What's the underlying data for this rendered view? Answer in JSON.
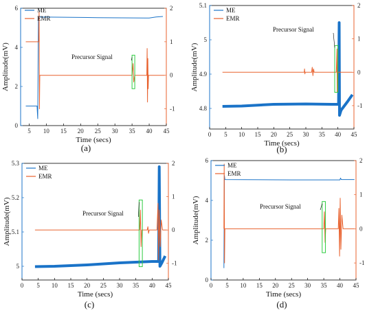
{
  "colors": {
    "me": "#1a73c8",
    "emr": "#e8602c",
    "annotation_box": "#2ecc40",
    "axis_left": "#1a73c8",
    "axis_right": "#e8602c"
  },
  "chart_data": [
    {
      "type": "line",
      "panel_label": "(a)",
      "xlabel": "Time (secs)",
      "ylabel": "Amplitude(mV)",
      "xticks": [
        5,
        10,
        15,
        20,
        25,
        30,
        35,
        40,
        45
      ],
      "xlim": [
        2.5,
        45
      ],
      "yticks": [
        "0",
        "2",
        "4",
        "6"
      ],
      "ylim": [
        0,
        6
      ],
      "y2ticks": [
        "-1",
        "0",
        "1",
        "2"
      ],
      "y2lim": [
        -1.5,
        2
      ],
      "legend": [
        "ME",
        "EMR"
      ],
      "legend_position": "top-left",
      "annotation": {
        "text": "Precursor Signal",
        "box_x": [
          35,
          35.8
        ],
        "box_y2": [
          -0.4,
          0.6
        ]
      },
      "series": [
        {
          "name": "ME",
          "axis": "left",
          "points": [
            [
              4,
              1.0
            ],
            [
              7.3,
              1.0
            ],
            [
              7.5,
              0.35
            ],
            [
              7.7,
              5.55
            ],
            [
              25,
              5.52
            ],
            [
              39,
              5.5
            ],
            [
              40,
              5.5
            ],
            [
              42,
              5.55
            ],
            [
              44,
              5.58
            ]
          ]
        },
        {
          "name": "EMR",
          "axis": "right",
          "points": [
            [
              4,
              1
            ],
            [
              7.8,
              1
            ],
            [
              7.9,
              1.88
            ],
            [
              8.0,
              -1.0
            ],
            [
              8.1,
              0
            ],
            [
              35,
              0
            ],
            [
              35.3,
              0.35
            ],
            [
              35.5,
              -0.2
            ],
            [
              35.8,
              0
            ],
            [
              39.3,
              0
            ],
            [
              39.4,
              0.8
            ],
            [
              39.5,
              -0.8
            ],
            [
              39.6,
              0.5
            ],
            [
              39.7,
              -0.4
            ],
            [
              39.8,
              0
            ],
            [
              44.5,
              0
            ]
          ]
        }
      ]
    },
    {
      "type": "line",
      "panel_label": "(b)",
      "xlabel": "Time (secs)",
      "ylabel": "Amplitude(mV)",
      "xticks": [
        0,
        5,
        10,
        15,
        20,
        25,
        30,
        35,
        40,
        45
      ],
      "xlim": [
        0,
        45
      ],
      "yticks": [
        "4.8",
        "4.9",
        "5",
        "5.1"
      ],
      "ylim": [
        4.74,
        5.1
      ],
      "y2ticks": [
        "-1",
        "0",
        "1",
        "2"
      ],
      "y2lim": [
        -1.7,
        2
      ],
      "legend": [
        "ME",
        "EMR"
      ],
      "legend_position": "top-left",
      "annotation": {
        "text": "Precursor Signal",
        "box_x": [
          39,
          40
        ],
        "box_y2": [
          -0.6,
          0.8
        ]
      },
      "series": [
        {
          "name": "ME",
          "axis": "left",
          "points": [
            [
              4,
              4.806
            ],
            [
              10,
              4.807
            ],
            [
              20,
              4.812
            ],
            [
              30,
              4.813
            ],
            [
              38,
              4.812
            ],
            [
              40.2,
              4.812
            ],
            [
              40.4,
              5.05
            ],
            [
              40.5,
              4.78
            ],
            [
              41,
              4.795
            ],
            [
              43,
              4.82
            ],
            [
              44.5,
              4.84
            ]
          ]
        },
        {
          "name": "EMR",
          "axis": "right",
          "points": [
            [
              4,
              0
            ],
            [
              29.5,
              0
            ],
            [
              29.6,
              0.1
            ],
            [
              29.7,
              -0.05
            ],
            [
              29.8,
              0
            ],
            [
              31.8,
              0
            ],
            [
              32,
              0.15
            ],
            [
              32.2,
              -0.1
            ],
            [
              32.4,
              0.1
            ],
            [
              32.6,
              0
            ],
            [
              39.5,
              0
            ],
            [
              39.7,
              0.7
            ],
            [
              39.8,
              -0.6
            ],
            [
              40,
              0
            ],
            [
              44.5,
              0
            ]
          ]
        }
      ]
    },
    {
      "type": "line",
      "panel_label": "(c)",
      "xlabel": "Time (secs)",
      "ylabel": "Amplitude(mV)",
      "xticks": [
        0,
        5,
        10,
        15,
        20,
        25,
        30,
        35,
        40,
        45
      ],
      "xlim": [
        0,
        45
      ],
      "yticks": [
        "5",
        "5.1",
        "5.2",
        "5.3"
      ],
      "ylim": [
        4.96,
        5.3
      ],
      "y2ticks": [
        "-1",
        "0",
        "1",
        "2"
      ],
      "y2lim": [
        -1.5,
        2
      ],
      "legend": [
        "ME",
        "EMR"
      ],
      "legend_position": "top-left",
      "annotation": {
        "text": "Precursor Signal",
        "box_x": [
          36,
          37
        ],
        "box_y2": [
          -1.1,
          0.9
        ]
      },
      "series": [
        {
          "name": "ME",
          "axis": "left",
          "points": [
            [
              4,
              4.999
            ],
            [
              10,
              5.0
            ],
            [
              20,
              5.004
            ],
            [
              30,
              5.01
            ],
            [
              40,
              5.014
            ],
            [
              42,
              5.014
            ],
            [
              42.2,
              5.29
            ],
            [
              42.4,
              5.0
            ],
            [
              43,
              5.01
            ],
            [
              44,
              5.03
            ]
          ]
        },
        {
          "name": "EMR",
          "axis": "right",
          "points": [
            [
              4,
              0
            ],
            [
              36.2,
              0
            ],
            [
              36.4,
              0.6
            ],
            [
              36.6,
              -0.5
            ],
            [
              36.8,
              0
            ],
            [
              38.5,
              0
            ],
            [
              38.7,
              0.1
            ],
            [
              38.9,
              -0.1
            ],
            [
              39.1,
              0
            ],
            [
              41.5,
              0
            ],
            [
              41.8,
              0.8
            ],
            [
              42.0,
              -0.9
            ],
            [
              42.2,
              0.6
            ],
            [
              42.5,
              -0.5
            ],
            [
              42.8,
              0.3
            ],
            [
              43.2,
              0
            ],
            [
              44.5,
              0
            ]
          ]
        }
      ]
    },
    {
      "type": "line",
      "panel_label": "(d)",
      "xlabel": "Time (secs)",
      "ylabel": "Amplitude(mV)",
      "xticks": [
        0,
        5,
        10,
        15,
        20,
        25,
        30,
        35,
        40,
        45
      ],
      "xlim": [
        0,
        45
      ],
      "yticks": [
        "0",
        "2",
        "4",
        "6"
      ],
      "ylim": [
        0,
        6
      ],
      "y2ticks": [
        "-1",
        "0",
        "1",
        "2"
      ],
      "y2lim": [
        -1.5,
        2
      ],
      "legend": [
        "ME",
        "EMR"
      ],
      "legend_position": "top-left",
      "annotation": {
        "text": "Precursor Signal",
        "box_x": [
          34.5,
          35.5
        ],
        "box_y2": [
          -0.7,
          0.8
        ]
      },
      "series": [
        {
          "name": "ME",
          "axis": "left",
          "points": [
            [
              4,
              0.6
            ],
            [
              4.15,
              5.25
            ],
            [
              4.3,
              5.05
            ],
            [
              25,
              5.03
            ],
            [
              40,
              5.03
            ],
            [
              40.2,
              5.12
            ],
            [
              40.4,
              5.05
            ],
            [
              44.5,
              5.05
            ]
          ]
        },
        {
          "name": "EMR",
          "axis": "right",
          "points": [
            [
              4,
              0
            ],
            [
              4.1,
              1.9
            ],
            [
              4.2,
              -1.0
            ],
            [
              4.3,
              0
            ],
            [
              35,
              0
            ],
            [
              35.2,
              0.5
            ],
            [
              35.4,
              -0.4
            ],
            [
              35.6,
              0
            ],
            [
              39.5,
              0
            ],
            [
              39.7,
              0.6
            ],
            [
              39.9,
              -0.8
            ],
            [
              40.1,
              0.9
            ],
            [
              40.3,
              -0.6
            ],
            [
              40.6,
              0.4
            ],
            [
              41,
              0
            ],
            [
              44.5,
              0
            ]
          ]
        }
      ]
    }
  ]
}
